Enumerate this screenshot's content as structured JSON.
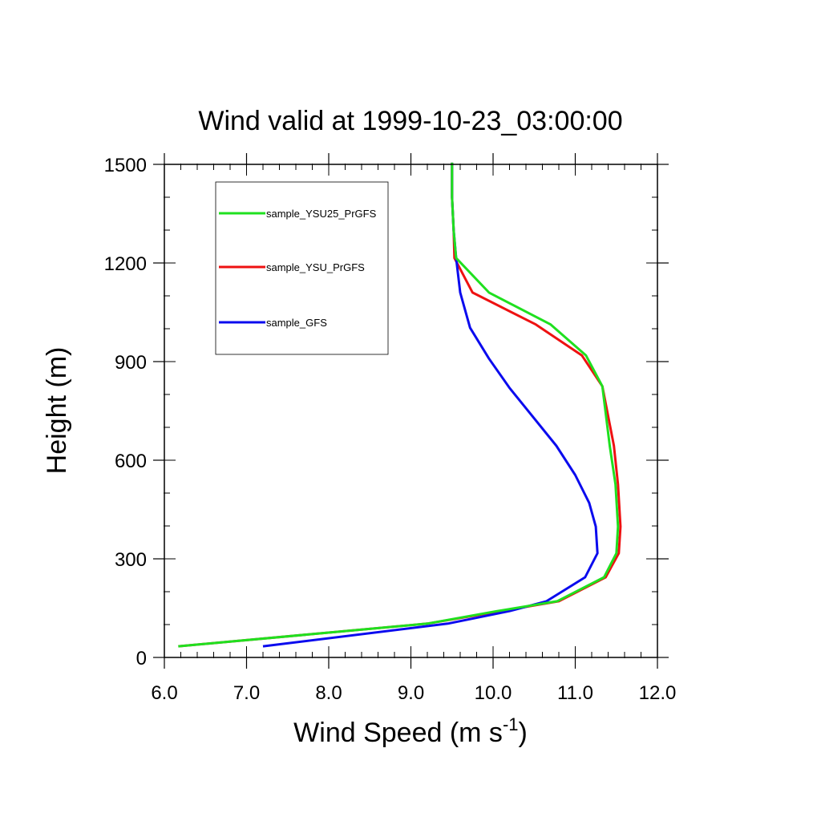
{
  "chart_data": {
    "type": "line",
    "title": "Wind valid at 1999-10-23_03:00:00",
    "xlabel": "Wind Speed (m s",
    "xlabel_sup": "-1",
    "xlabel_end": ")",
    "ylabel": "Height (m)",
    "xlim": [
      6.0,
      12.0
    ],
    "ylim": [
      0,
      1500
    ],
    "xticks": [
      "6.0",
      "7.0",
      "8.0",
      "9.0",
      "10.0",
      "11.0",
      "12.0"
    ],
    "yticks": [
      "0",
      "300",
      "600",
      "900",
      "1200",
      "1500"
    ],
    "legend_position": "top-left",
    "series": [
      {
        "name": "sample_YSU25_PrGFS",
        "color": "#1fe01f",
        "points": [
          [
            6.17,
            34
          ],
          [
            9.2,
            103
          ],
          [
            10.05,
            141
          ],
          [
            10.78,
            171
          ],
          [
            11.35,
            244
          ],
          [
            11.5,
            317
          ],
          [
            11.52,
            398
          ],
          [
            11.49,
            526
          ],
          [
            11.42,
            644
          ],
          [
            11.33,
            825
          ],
          [
            11.13,
            919
          ],
          [
            10.7,
            1013
          ],
          [
            9.95,
            1110
          ],
          [
            9.55,
            1215
          ],
          [
            9.52,
            1300
          ],
          [
            9.5,
            1400
          ],
          [
            9.5,
            1505
          ]
        ]
      },
      {
        "name": "sample_YSU_PrGFS",
        "color": "#ee1111",
        "points": [
          [
            6.17,
            34
          ],
          [
            9.2,
            103
          ],
          [
            10.1,
            141
          ],
          [
            10.8,
            171
          ],
          [
            11.37,
            244
          ],
          [
            11.53,
            317
          ],
          [
            11.55,
            398
          ],
          [
            11.52,
            526
          ],
          [
            11.47,
            644
          ],
          [
            11.33,
            825
          ],
          [
            11.08,
            919
          ],
          [
            10.52,
            1013
          ],
          [
            9.75,
            1110
          ],
          [
            9.53,
            1215
          ],
          [
            9.52,
            1300
          ],
          [
            9.5,
            1400
          ],
          [
            9.5,
            1505
          ]
        ]
      },
      {
        "name": "sample_GFS",
        "color": "#0b0bee",
        "points": [
          [
            7.2,
            34
          ],
          [
            9.45,
            103
          ],
          [
            10.2,
            141
          ],
          [
            10.65,
            171
          ],
          [
            11.12,
            244
          ],
          [
            11.27,
            317
          ],
          [
            11.25,
            398
          ],
          [
            11.17,
            470
          ],
          [
            11.0,
            555
          ],
          [
            10.77,
            644
          ],
          [
            10.2,
            820
          ],
          [
            9.95,
            909
          ],
          [
            9.72,
            1003
          ],
          [
            9.6,
            1110
          ],
          [
            9.55,
            1215
          ],
          [
            9.52,
            1300
          ],
          [
            9.5,
            1400
          ],
          [
            9.5,
            1505
          ]
        ]
      }
    ]
  }
}
